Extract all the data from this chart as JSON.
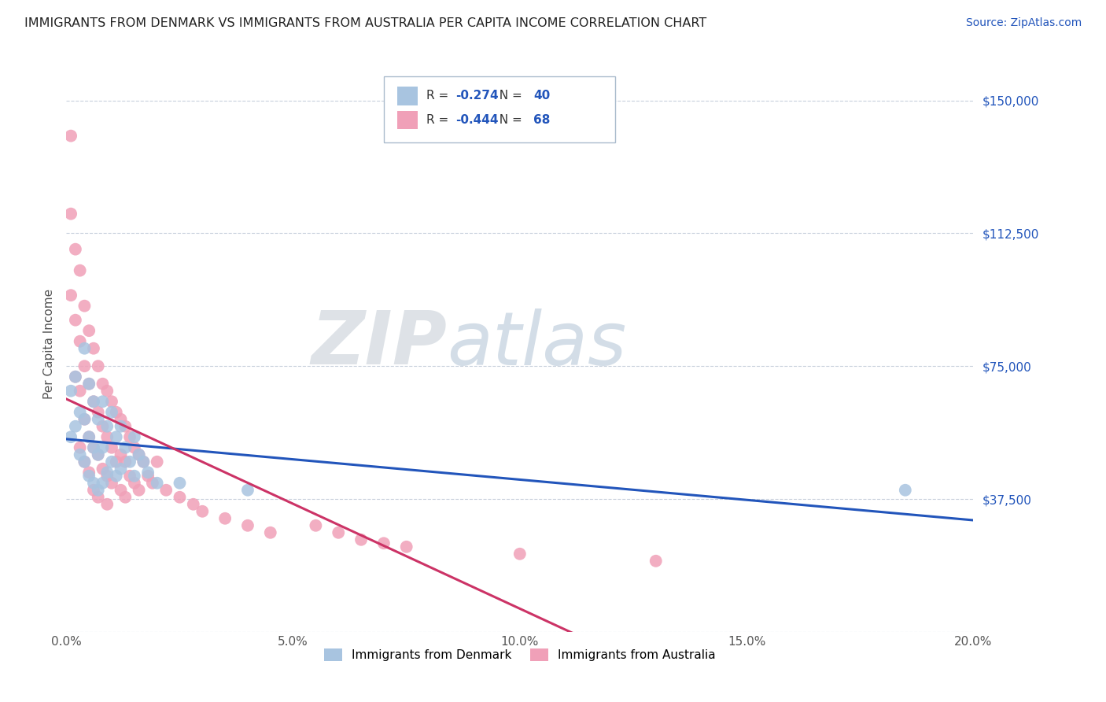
{
  "title": "IMMIGRANTS FROM DENMARK VS IMMIGRANTS FROM AUSTRALIA PER CAPITA INCOME CORRELATION CHART",
  "source": "Source: ZipAtlas.com",
  "ylabel": "Per Capita Income",
  "xlim": [
    0.0,
    0.2
  ],
  "ylim": [
    0,
    162500
  ],
  "yticks": [
    0,
    37500,
    75000,
    112500,
    150000
  ],
  "ytick_labels": [
    "",
    "$37,500",
    "$75,000",
    "$112,500",
    "$150,000"
  ],
  "xticks": [
    0.0,
    0.05,
    0.1,
    0.15,
    0.2
  ],
  "xtick_labels": [
    "0.0%",
    "5.0%",
    "10.0%",
    "15.0%",
    "20.0%"
  ],
  "legend_labels": [
    "Immigrants from Denmark",
    "Immigrants from Australia"
  ],
  "legend_R": [
    "-0.274",
    "-0.444"
  ],
  "legend_N": [
    "40",
    "68"
  ],
  "denmark_color": "#a8c4e0",
  "australia_color": "#f0a0b8",
  "denmark_line_color": "#2255bb",
  "australia_line_color": "#cc3366",
  "watermark_zip": "ZIP",
  "watermark_atlas": "atlas",
  "background_color": "#ffffff",
  "grid_color": "#c8d0dc",
  "denmark_x": [
    0.001,
    0.001,
    0.002,
    0.002,
    0.003,
    0.003,
    0.004,
    0.004,
    0.004,
    0.005,
    0.005,
    0.005,
    0.006,
    0.006,
    0.006,
    0.007,
    0.007,
    0.007,
    0.008,
    0.008,
    0.008,
    0.009,
    0.009,
    0.01,
    0.01,
    0.011,
    0.011,
    0.012,
    0.012,
    0.013,
    0.014,
    0.015,
    0.015,
    0.016,
    0.017,
    0.018,
    0.02,
    0.025,
    0.04,
    0.185
  ],
  "denmark_y": [
    68000,
    55000,
    72000,
    58000,
    62000,
    50000,
    80000,
    60000,
    48000,
    70000,
    55000,
    44000,
    65000,
    52000,
    42000,
    60000,
    50000,
    40000,
    65000,
    52000,
    42000,
    58000,
    45000,
    62000,
    48000,
    55000,
    44000,
    58000,
    46000,
    52000,
    48000,
    55000,
    44000,
    50000,
    48000,
    45000,
    42000,
    42000,
    40000,
    40000
  ],
  "australia_x": [
    0.001,
    0.001,
    0.001,
    0.002,
    0.002,
    0.002,
    0.003,
    0.003,
    0.003,
    0.003,
    0.004,
    0.004,
    0.004,
    0.004,
    0.005,
    0.005,
    0.005,
    0.005,
    0.006,
    0.006,
    0.006,
    0.006,
    0.007,
    0.007,
    0.007,
    0.007,
    0.008,
    0.008,
    0.008,
    0.009,
    0.009,
    0.009,
    0.009,
    0.01,
    0.01,
    0.01,
    0.011,
    0.011,
    0.012,
    0.012,
    0.012,
    0.013,
    0.013,
    0.013,
    0.014,
    0.014,
    0.015,
    0.015,
    0.016,
    0.016,
    0.017,
    0.018,
    0.019,
    0.02,
    0.022,
    0.025,
    0.028,
    0.03,
    0.035,
    0.04,
    0.045,
    0.055,
    0.06,
    0.065,
    0.07,
    0.075,
    0.1,
    0.13
  ],
  "australia_y": [
    140000,
    118000,
    95000,
    108000,
    88000,
    72000,
    102000,
    82000,
    68000,
    52000,
    92000,
    75000,
    60000,
    48000,
    85000,
    70000,
    55000,
    45000,
    80000,
    65000,
    52000,
    40000,
    75000,
    62000,
    50000,
    38000,
    70000,
    58000,
    46000,
    68000,
    55000,
    44000,
    36000,
    65000,
    52000,
    42000,
    62000,
    48000,
    60000,
    50000,
    40000,
    58000,
    48000,
    38000,
    55000,
    44000,
    52000,
    42000,
    50000,
    40000,
    48000,
    44000,
    42000,
    48000,
    40000,
    38000,
    36000,
    34000,
    32000,
    30000,
    28000,
    30000,
    28000,
    26000,
    25000,
    24000,
    22000,
    20000
  ]
}
